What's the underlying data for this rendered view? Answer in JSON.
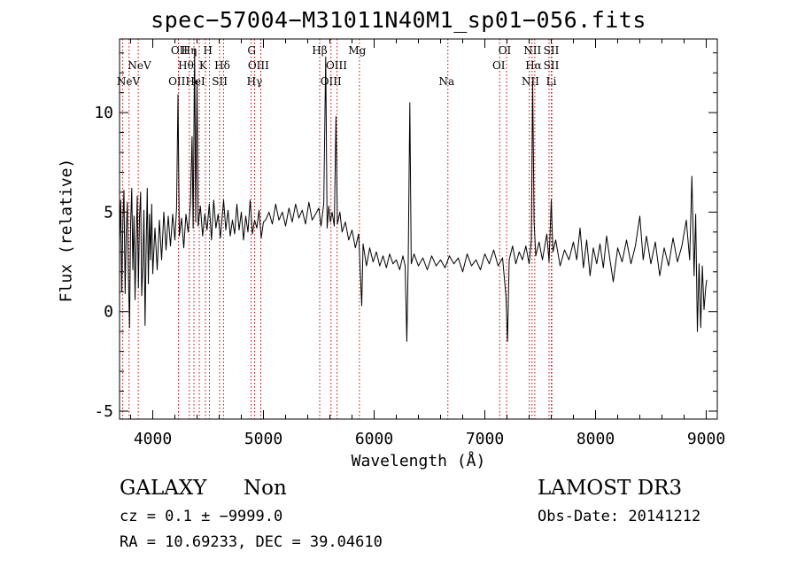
{
  "header": {
    "title": "spec−57004−M31011N40M1_sp01−056.fits"
  },
  "chart_data": {
    "type": "line",
    "title": "spec−57004−M31011N40M1_sp01−056.fits",
    "xlabel": "Wavelength (Å)",
    "ylabel": "Flux (relative)",
    "xlim": [
      3700,
      9100
    ],
    "ylim": [
      -5.4,
      13.7
    ],
    "xticks": [
      4000,
      5000,
      6000,
      7000,
      8000,
      9000
    ],
    "yticks": [
      -5,
      0,
      5,
      10
    ],
    "line_color": "#000000",
    "marker_color": "#cc0000",
    "series": [
      {
        "name": "flux",
        "points": [
          [
            3700,
            3.4
          ],
          [
            3710,
            5.6
          ],
          [
            3720,
            1.0
          ],
          [
            3730,
            4.6
          ],
          [
            3740,
            6.1
          ],
          [
            3750,
            0.9
          ],
          [
            3760,
            3.9
          ],
          [
            3770,
            5.5
          ],
          [
            3780,
            1.9
          ],
          [
            3790,
            -0.8
          ],
          [
            3800,
            4.4
          ],
          [
            3810,
            6.2
          ],
          [
            3820,
            2.1
          ],
          [
            3830,
            4.8
          ],
          [
            3840,
            0.6
          ],
          [
            3850,
            3.6
          ],
          [
            3860,
            5.8
          ],
          [
            3870,
            1.2
          ],
          [
            3880,
            4.7
          ],
          [
            3890,
            6.0
          ],
          [
            3900,
            0.8
          ],
          [
            3910,
            2.4
          ],
          [
            3920,
            5.1
          ],
          [
            3930,
            -0.7
          ],
          [
            3940,
            3.1
          ],
          [
            3950,
            6.2
          ],
          [
            3960,
            1.4
          ],
          [
            3970,
            4.9
          ],
          [
            3980,
            2.6
          ],
          [
            3990,
            5.4
          ],
          [
            4000,
            1.9
          ],
          [
            4020,
            4.2
          ],
          [
            4040,
            2.1
          ],
          [
            4060,
            4.6
          ],
          [
            4080,
            2.6
          ],
          [
            4100,
            5.0
          ],
          [
            4120,
            3.1
          ],
          [
            4140,
            4.8
          ],
          [
            4160,
            3.3
          ],
          [
            4180,
            4.9
          ],
          [
            4200,
            3.6
          ],
          [
            4215,
            5.2
          ],
          [
            4228,
            10.9
          ],
          [
            4240,
            3.8
          ],
          [
            4260,
            4.7
          ],
          [
            4280,
            3.2
          ],
          [
            4300,
            4.9
          ],
          [
            4320,
            4.0
          ],
          [
            4340,
            5.4
          ],
          [
            4355,
            8.8
          ],
          [
            4365,
            4.2
          ],
          [
            4378,
            13.2
          ],
          [
            4388,
            4.5
          ],
          [
            4400,
            11.6
          ],
          [
            4410,
            4.3
          ],
          [
            4430,
            5.3
          ],
          [
            4450,
            3.8
          ],
          [
            4470,
            4.9
          ],
          [
            4490,
            4.1
          ],
          [
            4510,
            5.4
          ],
          [
            4530,
            3.6
          ],
          [
            4550,
            5.6
          ],
          [
            4570,
            4.2
          ],
          [
            4590,
            4.9
          ],
          [
            4610,
            3.7
          ],
          [
            4640,
            5.6
          ],
          [
            4660,
            4.1
          ],
          [
            4680,
            5.1
          ],
          [
            4700,
            3.8
          ],
          [
            4720,
            4.6
          ],
          [
            4740,
            3.9
          ],
          [
            4760,
            5.4
          ],
          [
            4780,
            4.1
          ],
          [
            4800,
            5.0
          ],
          [
            4820,
            3.6
          ],
          [
            4840,
            4.8
          ],
          [
            4860,
            4.0
          ],
          [
            4880,
            5.6
          ],
          [
            4900,
            3.9
          ],
          [
            4920,
            4.6
          ],
          [
            4940,
            4.2
          ],
          [
            4960,
            5.1
          ],
          [
            4980,
            3.7
          ],
          [
            5000,
            4.5
          ],
          [
            5020,
            4.6
          ],
          [
            5050,
            5.0
          ],
          [
            5080,
            4.4
          ],
          [
            5110,
            5.4
          ],
          [
            5140,
            4.6
          ],
          [
            5170,
            5.0
          ],
          [
            5200,
            4.3
          ],
          [
            5230,
            5.2
          ],
          [
            5260,
            4.5
          ],
          [
            5290,
            5.4
          ],
          [
            5320,
            4.7
          ],
          [
            5350,
            5.1
          ],
          [
            5380,
            4.4
          ],
          [
            5410,
            5.5
          ],
          [
            5440,
            4.6
          ],
          [
            5470,
            4.9
          ],
          [
            5500,
            5.2
          ],
          [
            5520,
            4.3
          ],
          [
            5545,
            5.4
          ],
          [
            5562,
            12.8
          ],
          [
            5575,
            4.2
          ],
          [
            5590,
            5.3
          ],
          [
            5605,
            4.5
          ],
          [
            5620,
            5.0
          ],
          [
            5640,
            4.3
          ],
          [
            5655,
            9.8
          ],
          [
            5668,
            4.4
          ],
          [
            5690,
            5.0
          ],
          [
            5710,
            4.0
          ],
          [
            5740,
            4.5
          ],
          [
            5770,
            3.6
          ],
          [
            5800,
            4.1
          ],
          [
            5830,
            3.2
          ],
          [
            5860,
            3.9
          ],
          [
            5888,
            0.3
          ],
          [
            5900,
            3.4
          ],
          [
            5930,
            2.3
          ],
          [
            5960,
            3.2
          ],
          [
            5990,
            2.5
          ],
          [
            6020,
            3.0
          ],
          [
            6050,
            2.3
          ],
          [
            6080,
            2.8
          ],
          [
            6110,
            2.2
          ],
          [
            6140,
            2.9
          ],
          [
            6170,
            2.4
          ],
          [
            6200,
            2.6
          ],
          [
            6230,
            2.1
          ],
          [
            6260,
            2.8
          ],
          [
            6280,
            2.3
          ],
          [
            6295,
            -1.5
          ],
          [
            6308,
            2.6
          ],
          [
            6322,
            10.5
          ],
          [
            6335,
            2.4
          ],
          [
            6360,
            2.9
          ],
          [
            6400,
            2.3
          ],
          [
            6440,
            2.7
          ],
          [
            6480,
            2.1
          ],
          [
            6520,
            2.8
          ],
          [
            6560,
            2.3
          ],
          [
            6600,
            2.6
          ],
          [
            6640,
            2.2
          ],
          [
            6680,
            2.8
          ],
          [
            6720,
            2.4
          ],
          [
            6760,
            2.7
          ],
          [
            6800,
            2.0
          ],
          [
            6840,
            2.9
          ],
          [
            6880,
            2.3
          ],
          [
            6920,
            2.6
          ],
          [
            6960,
            2.1
          ],
          [
            7000,
            2.9
          ],
          [
            7040,
            2.4
          ],
          [
            7080,
            3.1
          ],
          [
            7120,
            2.3
          ],
          [
            7160,
            2.7
          ],
          [
            7190,
            0.8
          ],
          [
            7205,
            -1.5
          ],
          [
            7220,
            2.6
          ],
          [
            7250,
            3.3
          ],
          [
            7280,
            2.4
          ],
          [
            7310,
            3.0
          ],
          [
            7340,
            2.6
          ],
          [
            7370,
            3.3
          ],
          [
            7400,
            2.4
          ],
          [
            7420,
            3.6
          ],
          [
            7432,
            11.6
          ],
          [
            7445,
            4.5
          ],
          [
            7460,
            2.8
          ],
          [
            7490,
            3.5
          ],
          [
            7520,
            2.6
          ],
          [
            7560,
            3.9
          ],
          [
            7580,
            2.5
          ],
          [
            7600,
            5.6
          ],
          [
            7615,
            3.0
          ],
          [
            7640,
            3.6
          ],
          [
            7680,
            2.3
          ],
          [
            7720,
            3.1
          ],
          [
            7760,
            2.6
          ],
          [
            7800,
            3.5
          ],
          [
            7830,
            2.6
          ],
          [
            7860,
            4.2
          ],
          [
            7890,
            2.2
          ],
          [
            7920,
            3.6
          ],
          [
            7950,
            1.8
          ],
          [
            7980,
            3.2
          ],
          [
            8010,
            2.4
          ],
          [
            8040,
            3.4
          ],
          [
            8070,
            2.2
          ],
          [
            8100,
            3.8
          ],
          [
            8130,
            2.6
          ],
          [
            8160,
            1.5
          ],
          [
            8200,
            3.2
          ],
          [
            8240,
            2.5
          ],
          [
            8280,
            3.6
          ],
          [
            8320,
            2.4
          ],
          [
            8360,
            3.3
          ],
          [
            8400,
            4.8
          ],
          [
            8430,
            2.6
          ],
          [
            8460,
            3.8
          ],
          [
            8500,
            2.4
          ],
          [
            8540,
            3.5
          ],
          [
            8580,
            1.8
          ],
          [
            8620,
            3.2
          ],
          [
            8660,
            2.3
          ],
          [
            8700,
            3.7
          ],
          [
            8740,
            2.5
          ],
          [
            8780,
            3.3
          ],
          [
            8820,
            4.6
          ],
          [
            8850,
            2.6
          ],
          [
            8870,
            6.8
          ],
          [
            8890,
            1.8
          ],
          [
            8905,
            4.9
          ],
          [
            8920,
            -1.0
          ],
          [
            8935,
            2.4
          ],
          [
            8950,
            -0.8
          ],
          [
            8965,
            2.3
          ],
          [
            8980,
            0.1
          ],
          [
            8995,
            1.2
          ],
          [
            9005,
            1.6
          ]
        ]
      }
    ],
    "line_markers": [
      {
        "name": "NeV",
        "wavelength": 3727
      },
      {
        "name": "NeV",
        "wavelength": 3786
      },
      {
        "name": "OII",
        "wavelength": 3869
      },
      {
        "name": "OII",
        "wavelength": 4232
      },
      {
        "name": "Hθ",
        "wavelength": 4330
      },
      {
        "name": "Hη",
        "wavelength": 4372
      },
      {
        "name": "HeI",
        "wavelength": 4420
      },
      {
        "name": "K",
        "wavelength": 4476
      },
      {
        "name": "H",
        "wavelength": 4512
      },
      {
        "name": "Hδ",
        "wavelength": 4604
      },
      {
        "name": "SII",
        "wavelength": 4639
      },
      {
        "name": "G",
        "wavelength": 4888
      },
      {
        "name": "OIII",
        "wavelength": 4920
      },
      {
        "name": "Hγ",
        "wavelength": 4976
      },
      {
        "name": "Hβ",
        "wavelength": 5508
      },
      {
        "name": "OIII",
        "wavelength": 5610
      },
      {
        "name": "OIII",
        "wavelength": 5665
      },
      {
        "name": "Mg",
        "wavelength": 5867
      },
      {
        "name": "Na",
        "wavelength": 6666
      },
      {
        "name": "OI",
        "wavelength": 7134
      },
      {
        "name": "OI",
        "wavelength": 7196
      },
      {
        "name": "NII",
        "wavelength": 7402
      },
      {
        "name": "Hα",
        "wavelength": 7426
      },
      {
        "name": "NII",
        "wavelength": 7451
      },
      {
        "name": "SII",
        "wavelength": 7580
      },
      {
        "name": "SII",
        "wavelength": 7600
      },
      {
        "name": "Li",
        "wavelength": 7605
      }
    ],
    "line_labels": [
      {
        "text": "NeV",
        "wavelength": 3880,
        "row": 2,
        "anchor": "middle"
      },
      {
        "text": "NeV",
        "wavelength": 3780,
        "row": 3,
        "anchor": "middle"
      },
      {
        "text": "OII",
        "wavelength": 4240,
        "row": 1,
        "anchor": "middle"
      },
      {
        "text": "Hη",
        "wavelength": 4328,
        "row": 1,
        "anchor": "middle"
      },
      {
        "text": "H",
        "wavelength": 4498,
        "row": 1,
        "anchor": "middle"
      },
      {
        "text": "Hθ",
        "wavelength": 4300,
        "row": 2,
        "anchor": "middle"
      },
      {
        "text": "K",
        "wavelength": 4455,
        "row": 2,
        "anchor": "middle"
      },
      {
        "text": "Hδ",
        "wavelength": 4628,
        "row": 2,
        "anchor": "middle"
      },
      {
        "text": "OII",
        "wavelength": 4218,
        "row": 3,
        "anchor": "middle"
      },
      {
        "text": "HeI",
        "wavelength": 4385,
        "row": 3,
        "anchor": "middle"
      },
      {
        "text": "SII",
        "wavelength": 4605,
        "row": 3,
        "anchor": "middle"
      },
      {
        "text": "G",
        "wavelength": 4893,
        "row": 1,
        "anchor": "middle"
      },
      {
        "text": "OIII",
        "wavelength": 4955,
        "row": 2,
        "anchor": "middle"
      },
      {
        "text": "Hγ",
        "wavelength": 4920,
        "row": 3,
        "anchor": "middle"
      },
      {
        "text": "Hβ",
        "wavelength": 5508,
        "row": 1,
        "anchor": "middle"
      },
      {
        "text": "OIII",
        "wavelength": 5660,
        "row": 2,
        "anchor": "middle"
      },
      {
        "text": "OIII",
        "wavelength": 5610,
        "row": 3,
        "anchor": "middle"
      },
      {
        "text": "Mg",
        "wavelength": 5847,
        "row": 1,
        "anchor": "middle"
      },
      {
        "text": "Na",
        "wavelength": 6655,
        "row": 3,
        "anchor": "middle"
      },
      {
        "text": "OI",
        "wavelength": 7180,
        "row": 1,
        "anchor": "middle"
      },
      {
        "text": "OI",
        "wavelength": 7126,
        "row": 2,
        "anchor": "middle"
      },
      {
        "text": "NII",
        "wavelength": 7430,
        "row": 1,
        "anchor": "middle"
      },
      {
        "text": "SII",
        "wavelength": 7600,
        "row": 1,
        "anchor": "middle"
      },
      {
        "text": "Hα",
        "wavelength": 7440,
        "row": 2,
        "anchor": "middle"
      },
      {
        "text": "SII",
        "wavelength": 7600,
        "row": 2,
        "anchor": "middle"
      },
      {
        "text": "NII",
        "wavelength": 7412,
        "row": 3,
        "anchor": "middle"
      },
      {
        "text": "Li",
        "wavelength": 7600,
        "row": 3,
        "anchor": "middle"
      }
    ]
  },
  "info": {
    "class": "GALAXY",
    "subclass": "Non",
    "cz": "cz = 0.1 ± −9999.0",
    "radec": "RA =  10.69233, DEC =  39.04610",
    "survey": "LAMOST DR3",
    "obs_date": "Obs-Date: 20141212"
  }
}
